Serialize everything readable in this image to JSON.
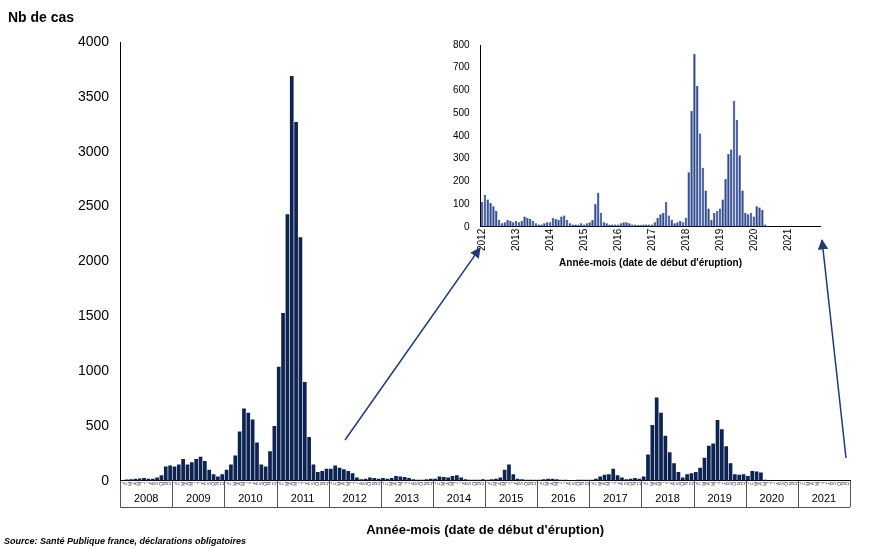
{
  "chart_data": [
    {
      "type": "bar",
      "ylabel": "Nb de cas",
      "xlabel": "Année-mois (date de début d'éruption)",
      "categories": [
        "J",
        "F",
        "M",
        "A",
        "M",
        "J",
        "J",
        "A",
        "S",
        "O",
        "N",
        "D",
        "J",
        "F",
        "M",
        "A",
        "M",
        "J",
        "J",
        "A",
        "S",
        "O",
        "N",
        "D",
        "J",
        "F",
        "M",
        "A",
        "M",
        "J",
        "J",
        "A",
        "S",
        "O",
        "N",
        "D",
        "J",
        "F",
        "M",
        "A",
        "M",
        "J",
        "J",
        "A",
        "S",
        "O",
        "N",
        "D",
        "J",
        "F",
        "M",
        "A",
        "M",
        "J",
        "J",
        "A",
        "S",
        "O",
        "N",
        "D",
        "J",
        "F",
        "M",
        "A",
        "M",
        "J",
        "J",
        "A",
        "S",
        "O",
        "N",
        "D",
        "J",
        "F",
        "M",
        "A",
        "M",
        "J",
        "J",
        "A",
        "S",
        "O",
        "N",
        "D",
        "J",
        "F",
        "M",
        "A",
        "M",
        "J",
        "J",
        "A",
        "S",
        "O",
        "N",
        "D",
        "J",
        "F",
        "M",
        "A",
        "M",
        "J",
        "J",
        "A",
        "S",
        "O",
        "N",
        "D",
        "J",
        "F",
        "M",
        "A",
        "M",
        "J",
        "J",
        "A",
        "S",
        "O",
        "N",
        "D",
        "J",
        "F",
        "M",
        "A",
        "M",
        "J",
        "J",
        "A",
        "S",
        "O",
        "N",
        "D",
        "J",
        "F",
        "M",
        "A",
        "M",
        "J",
        "J",
        "A",
        "S",
        "O",
        "N",
        "D",
        "J",
        "F",
        "M",
        "A",
        "M",
        "J",
        "J",
        "A",
        "S",
        "O",
        "N",
        "D",
        "J",
        "F",
        "M",
        "A",
        "M",
        "J",
        "J",
        "A",
        "S",
        "O",
        "N",
        "D"
      ],
      "year_groups": [
        "2008",
        "2009",
        "2010",
        "2011",
        "2012",
        "2013",
        "2014",
        "2015",
        "2016",
        "2017",
        "2018",
        "2019",
        "2020",
        "2021"
      ],
      "values": [
        8,
        12,
        15,
        20,
        22,
        25,
        20,
        18,
        30,
        50,
        130,
        140,
        130,
        150,
        200,
        150,
        170,
        200,
        220,
        180,
        100,
        60,
        40,
        60,
        100,
        150,
        230,
        450,
        660,
        620,
        560,
        350,
        150,
        130,
        270,
        500,
        1040,
        1530,
        2430,
        3690,
        3270,
        2220,
        900,
        400,
        150,
        80,
        90,
        110,
        110,
        140,
        120,
        105,
        90,
        70,
        30,
        15,
        20,
        30,
        25,
        20,
        25,
        20,
        25,
        45,
        40,
        35,
        25,
        15,
        10,
        10,
        15,
        20,
        20,
        40,
        35,
        30,
        45,
        50,
        30,
        15,
        10,
        10,
        10,
        15,
        10,
        15,
        20,
        30,
        100,
        150,
        60,
        20,
        15,
        10,
        10,
        10,
        10,
        15,
        20,
        20,
        15,
        10,
        10,
        8,
        8,
        10,
        10,
        10,
        10,
        20,
        40,
        55,
        60,
        110,
        50,
        30,
        15,
        20,
        25,
        20,
        40,
        240,
        510,
        760,
        620,
        410,
        260,
        160,
        80,
        30,
        60,
        70,
        80,
        120,
        210,
        320,
        340,
        555,
        470,
        315,
        160,
        60,
        55,
        60,
        45,
        90,
        85,
        75,
        10,
        3,
        2,
        2,
        2,
        2,
        2,
        2,
        3,
        2,
        2,
        3,
        2,
        2,
        3,
        2,
        2,
        2,
        2,
        3
      ],
      "color": "#0d2352",
      "ylim": [
        0,
        4000
      ],
      "yticks": [
        0,
        500,
        1000,
        1500,
        2000,
        2500,
        3000,
        3500,
        4000
      ],
      "grid": false
    },
    {
      "type": "bar",
      "xlabel": "Année-mois (date de début d'éruption)",
      "categories": [
        "2012",
        null,
        null,
        null,
        null,
        null,
        null,
        null,
        null,
        null,
        null,
        null,
        "2013",
        null,
        null,
        null,
        null,
        null,
        null,
        null,
        null,
        null,
        null,
        null,
        "2014",
        null,
        null,
        null,
        null,
        null,
        null,
        null,
        null,
        null,
        null,
        null,
        "2015",
        null,
        null,
        null,
        null,
        null,
        null,
        null,
        null,
        null,
        null,
        null,
        "2016",
        null,
        null,
        null,
        null,
        null,
        null,
        null,
        null,
        null,
        null,
        null,
        "2017",
        null,
        null,
        null,
        null,
        null,
        null,
        null,
        null,
        null,
        null,
        null,
        "2018",
        null,
        null,
        null,
        null,
        null,
        null,
        null,
        null,
        null,
        null,
        null,
        "2019",
        null,
        null,
        null,
        null,
        null,
        null,
        null,
        null,
        null,
        null,
        null,
        "2020",
        null,
        null,
        null,
        null,
        null,
        null,
        null,
        null,
        null,
        null,
        null,
        "2021",
        null,
        null,
        null,
        null,
        null,
        null,
        null,
        null,
        null,
        null,
        null
      ],
      "values": [
        110,
        140,
        120,
        105,
        90,
        70,
        30,
        15,
        20,
        30,
        25,
        20,
        25,
        20,
        25,
        45,
        40,
        35,
        25,
        15,
        10,
        10,
        15,
        20,
        20,
        40,
        35,
        30,
        45,
        50,
        30,
        15,
        10,
        10,
        10,
        15,
        10,
        15,
        20,
        30,
        100,
        150,
        60,
        20,
        15,
        10,
        10,
        10,
        10,
        15,
        20,
        20,
        15,
        10,
        10,
        8,
        8,
        10,
        10,
        10,
        10,
        20,
        40,
        55,
        60,
        110,
        50,
        30,
        15,
        20,
        25,
        20,
        40,
        240,
        510,
        760,
        620,
        410,
        260,
        160,
        80,
        30,
        60,
        70,
        80,
        120,
        210,
        320,
        340,
        555,
        470,
        315,
        160,
        60,
        55,
        60,
        45,
        90,
        85,
        75,
        10,
        3,
        2,
        2,
        2,
        2,
        2,
        2,
        3,
        2,
        2,
        3,
        2,
        2,
        3,
        2,
        2,
        2,
        2,
        3
      ],
      "color": "#2b4a9e",
      "ylim": [
        0,
        800
      ],
      "yticks": [
        0,
        100,
        200,
        300,
        400,
        500,
        600,
        700,
        800
      ],
      "grid": false
    }
  ],
  "source": "Source: Santé Publique france, déclarations obligatoires"
}
